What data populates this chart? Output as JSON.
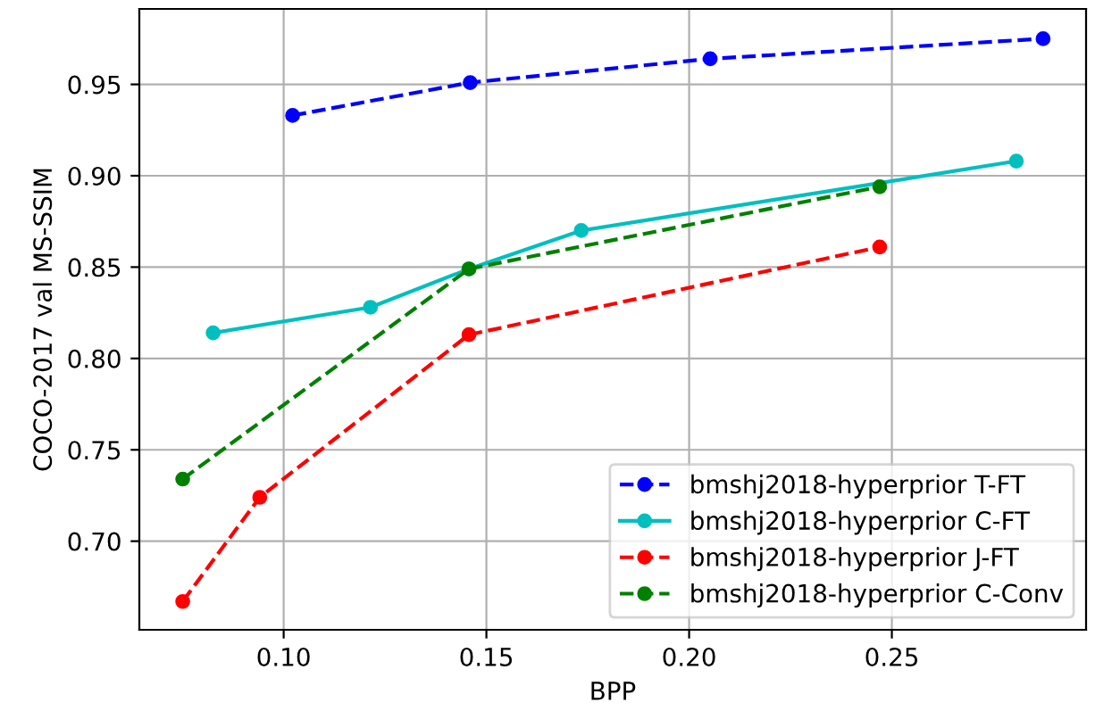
{
  "chart_data": {
    "type": "line",
    "xlabel": "BPP",
    "ylabel": "COCO-2017 val MS-SSIM",
    "xlim": [
      0.0644,
      0.2979
    ],
    "ylim": [
      0.6515,
      0.9913
    ],
    "xticks": [
      {
        "value": 0.1,
        "label": "0.10"
      },
      0.15,
      {
        "value": 0.2,
        "label": "0.20"
      },
      0.25
    ],
    "yticks": [
      {
        "value": 0.7,
        "label": "0.70"
      },
      0.75,
      {
        "value": 0.8,
        "label": "0.80"
      },
      0.85,
      {
        "value": 0.9,
        "label": "0.90"
      },
      0.95
    ],
    "grid": true,
    "legend": "bottom right",
    "marker": "circle",
    "series": [
      {
        "name": "bmshj2018-hyperprior T-FT",
        "color": "#0000ff",
        "line_style": "dashed",
        "x": [
          0.1022,
          0.146,
          0.2052,
          0.2873
        ],
        "values": [
          0.933,
          0.951,
          0.964,
          0.975
        ]
      },
      {
        "name": "bmshj2018-hyperprior C-FT",
        "color": "#00bfbf",
        "line_style": "solid",
        "x": [
          0.0826,
          0.1214,
          0.1457,
          0.1734,
          0.2807
        ],
        "values": [
          0.814,
          0.828,
          0.849,
          0.87,
          0.908
        ]
      },
      {
        "name": "bmshj2018-hyperprior J-FT",
        "color": "#ff0000",
        "line_style": "dashed",
        "x": [
          0.0751,
          0.0941,
          0.1457,
          0.247
        ],
        "values": [
          0.667,
          0.724,
          0.813,
          0.861
        ]
      },
      {
        "name": "bmshj2018-hyperprior C-Conv",
        "color": "#008000",
        "line_style": "dashed",
        "x": [
          0.0751,
          0.1457,
          0.247
        ],
        "values": [
          0.734,
          0.849,
          0.894
        ]
      }
    ]
  }
}
